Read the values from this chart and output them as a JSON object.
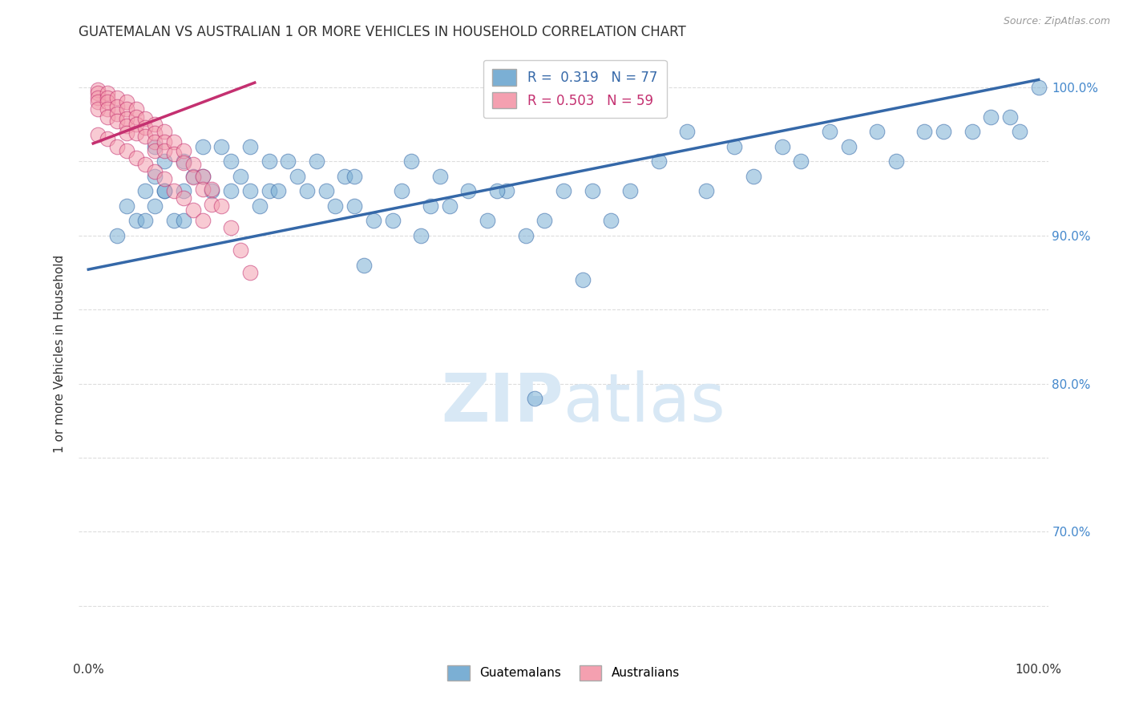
{
  "title": "GUATEMALAN VS AUSTRALIAN 1 OR MORE VEHICLES IN HOUSEHOLD CORRELATION CHART",
  "source": "Source: ZipAtlas.com",
  "ylabel": "1 or more Vehicles in Household",
  "x_ticks": [
    0.0,
    0.1,
    0.2,
    0.3,
    0.4,
    0.5,
    0.6,
    0.7,
    0.8,
    0.9,
    1.0
  ],
  "y_ticks": [
    0.65,
    0.7,
    0.75,
    0.8,
    0.85,
    0.9,
    0.95,
    1.0
  ],
  "y_tick_labels": [
    "",
    "70.0%",
    "",
    "80.0%",
    "",
    "90.0%",
    "",
    "100.0%"
  ],
  "xlim": [
    -0.01,
    1.01
  ],
  "ylim": [
    0.615,
    1.025
  ],
  "blue_color": "#7BAFD4",
  "pink_color": "#F4A0B0",
  "blue_line_color": "#3568A8",
  "pink_line_color": "#C43070",
  "watermark_color": "#D8E8F5",
  "background_color": "#FFFFFF",
  "grid_color": "#DDDDDD",
  "title_color": "#333333",
  "right_tick_color": "#4488CC",
  "legend_blue_label": "R =  0.319   N = 77",
  "legend_pink_label": "R = 0.503   N = 59",
  "blue_legend_color": "#3568A8",
  "pink_legend_color": "#C43070",
  "blue_x": [
    0.03,
    0.04,
    0.05,
    0.06,
    0.06,
    0.07,
    0.07,
    0.07,
    0.08,
    0.08,
    0.08,
    0.09,
    0.1,
    0.1,
    0.1,
    0.11,
    0.12,
    0.12,
    0.13,
    0.14,
    0.15,
    0.15,
    0.16,
    0.17,
    0.17,
    0.18,
    0.19,
    0.19,
    0.2,
    0.21,
    0.22,
    0.23,
    0.24,
    0.25,
    0.26,
    0.27,
    0.28,
    0.28,
    0.3,
    0.32,
    0.33,
    0.34,
    0.35,
    0.36,
    0.37,
    0.38,
    0.4,
    0.42,
    0.44,
    0.46,
    0.48,
    0.5,
    0.53,
    0.55,
    0.57,
    0.6,
    0.63,
    0.65,
    0.68,
    0.7,
    0.73,
    0.75,
    0.78,
    0.8,
    0.83,
    0.85,
    0.88,
    0.9,
    0.93,
    0.95,
    0.97,
    0.98,
    1.0,
    0.29,
    0.43,
    0.52,
    0.47
  ],
  "blue_y": [
    0.9,
    0.92,
    0.91,
    0.93,
    0.91,
    0.92,
    0.94,
    0.96,
    0.93,
    0.95,
    0.93,
    0.91,
    0.91,
    0.93,
    0.95,
    0.94,
    0.94,
    0.96,
    0.93,
    0.96,
    0.95,
    0.93,
    0.94,
    0.93,
    0.96,
    0.92,
    0.93,
    0.95,
    0.93,
    0.95,
    0.94,
    0.93,
    0.95,
    0.93,
    0.92,
    0.94,
    0.92,
    0.94,
    0.91,
    0.91,
    0.93,
    0.95,
    0.9,
    0.92,
    0.94,
    0.92,
    0.93,
    0.91,
    0.93,
    0.9,
    0.91,
    0.93,
    0.93,
    0.91,
    0.93,
    0.95,
    0.97,
    0.93,
    0.96,
    0.94,
    0.96,
    0.95,
    0.97,
    0.96,
    0.97,
    0.95,
    0.97,
    0.97,
    0.97,
    0.98,
    0.98,
    0.97,
    1.0,
    0.88,
    0.93,
    0.87,
    0.79
  ],
  "pink_x": [
    0.01,
    0.01,
    0.01,
    0.01,
    0.01,
    0.02,
    0.02,
    0.02,
    0.02,
    0.02,
    0.03,
    0.03,
    0.03,
    0.03,
    0.04,
    0.04,
    0.04,
    0.04,
    0.04,
    0.05,
    0.05,
    0.05,
    0.05,
    0.06,
    0.06,
    0.06,
    0.07,
    0.07,
    0.07,
    0.07,
    0.08,
    0.08,
    0.08,
    0.09,
    0.09,
    0.1,
    0.1,
    0.11,
    0.11,
    0.12,
    0.12,
    0.13,
    0.13,
    0.14,
    0.15,
    0.16,
    0.17,
    0.01,
    0.02,
    0.03,
    0.04,
    0.05,
    0.06,
    0.07,
    0.08,
    0.09,
    0.1,
    0.11,
    0.12
  ],
  "pink_y": [
    0.998,
    0.996,
    0.993,
    0.99,
    0.985,
    0.996,
    0.993,
    0.99,
    0.985,
    0.98,
    0.993,
    0.987,
    0.982,
    0.977,
    0.99,
    0.985,
    0.979,
    0.974,
    0.969,
    0.985,
    0.98,
    0.975,
    0.969,
    0.979,
    0.973,
    0.967,
    0.975,
    0.969,
    0.963,
    0.957,
    0.97,
    0.963,
    0.957,
    0.963,
    0.955,
    0.957,
    0.949,
    0.948,
    0.939,
    0.94,
    0.931,
    0.931,
    0.921,
    0.92,
    0.905,
    0.89,
    0.875,
    0.968,
    0.965,
    0.96,
    0.957,
    0.952,
    0.948,
    0.943,
    0.938,
    0.93,
    0.925,
    0.917,
    0.91
  ],
  "blue_line_x0": 0.0,
  "blue_line_y0": 0.877,
  "blue_line_x1": 1.0,
  "blue_line_y1": 1.005,
  "pink_line_x0": 0.005,
  "pink_line_y0": 0.962,
  "pink_line_x1": 0.175,
  "pink_line_y1": 1.003
}
